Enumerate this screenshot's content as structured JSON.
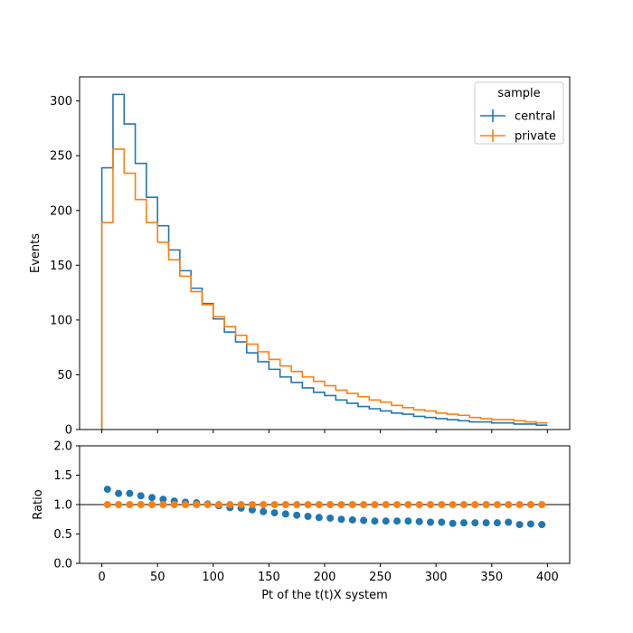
{
  "chart_data": [
    {
      "type": "line",
      "subtype": "step-histogram",
      "xlabel": "",
      "ylabel": "Events",
      "xlim": [
        -20,
        420
      ],
      "ylim": [
        0,
        322
      ],
      "yticks": [
        0,
        50,
        100,
        150,
        200,
        250,
        300
      ],
      "xticks": [
        0,
        50,
        100,
        150,
        200,
        250,
        300,
        350,
        400
      ],
      "bin_edges": [
        0,
        10,
        20,
        30,
        40,
        50,
        60,
        70,
        80,
        90,
        100,
        110,
        120,
        130,
        140,
        150,
        160,
        170,
        180,
        190,
        200,
        210,
        220,
        230,
        240,
        250,
        260,
        270,
        280,
        290,
        300,
        310,
        320,
        330,
        340,
        350,
        360,
        370,
        380,
        390,
        400
      ],
      "legend": {
        "title": "sample",
        "placement": "top-right"
      },
      "series": [
        {
          "name": "central",
          "color": "#1f77b4",
          "values": [
            239,
            306,
            279,
            243,
            212,
            186,
            164,
            145,
            129,
            115,
            101,
            89,
            80,
            70,
            62,
            55,
            48,
            43,
            38,
            34,
            31,
            27,
            24,
            21,
            19,
            17,
            15,
            14,
            12,
            11,
            10,
            9,
            8,
            7,
            7,
            6,
            6,
            5,
            5,
            4
          ]
        },
        {
          "name": "private",
          "color": "#ff7f0e",
          "values": [
            189,
            256,
            234,
            210,
            189,
            171,
            155,
            140,
            126,
            114,
            103,
            94,
            86,
            78,
            71,
            64,
            58,
            53,
            48,
            44,
            40,
            36,
            33,
            30,
            27,
            25,
            22,
            20,
            18,
            17,
            15,
            14,
            13,
            11,
            10,
            9,
            9,
            8,
            7,
            6
          ]
        }
      ]
    },
    {
      "type": "scatter",
      "xlabel": "Pt of the t(t)X system",
      "ylabel": "Ratio",
      "xlim": [
        -20,
        420
      ],
      "ylim": [
        0,
        2
      ],
      "yticks": [
        "0.0",
        "0.5",
        "1.0",
        "1.5",
        "2.0"
      ],
      "xticks": [
        0,
        50,
        100,
        150,
        200,
        250,
        300,
        350,
        400
      ],
      "reference_line": 1.0,
      "x": [
        5,
        15,
        25,
        35,
        45,
        55,
        65,
        75,
        85,
        95,
        105,
        115,
        125,
        135,
        145,
        155,
        165,
        175,
        185,
        195,
        205,
        215,
        225,
        235,
        245,
        255,
        265,
        275,
        285,
        295,
        305,
        315,
        325,
        335,
        345,
        355,
        365,
        375,
        385,
        395
      ],
      "series": [
        {
          "name": "central",
          "color": "#1f77b4",
          "values": [
            1.26,
            1.19,
            1.19,
            1.15,
            1.12,
            1.09,
            1.06,
            1.04,
            1.03,
            1.01,
            0.98,
            0.95,
            0.94,
            0.91,
            0.88,
            0.86,
            0.84,
            0.82,
            0.8,
            0.78,
            0.77,
            0.75,
            0.74,
            0.73,
            0.72,
            0.72,
            0.72,
            0.72,
            0.71,
            0.7,
            0.7,
            0.68,
            0.69,
            0.69,
            0.69,
            0.69,
            0.7,
            0.66,
            0.67,
            0.66
          ]
        },
        {
          "name": "private",
          "color": "#ff7f0e",
          "values": [
            1.0,
            1.0,
            1.0,
            1.0,
            1.0,
            1.0,
            1.0,
            1.0,
            1.0,
            1.0,
            1.0,
            1.0,
            1.0,
            1.0,
            1.0,
            1.0,
            1.0,
            1.0,
            1.0,
            1.0,
            1.0,
            1.0,
            1.0,
            1.0,
            1.0,
            1.0,
            1.0,
            1.0,
            1.0,
            1.0,
            1.0,
            1.0,
            1.0,
            1.0,
            1.0,
            1.0,
            1.0,
            1.0,
            1.0,
            1.0
          ]
        }
      ]
    }
  ]
}
